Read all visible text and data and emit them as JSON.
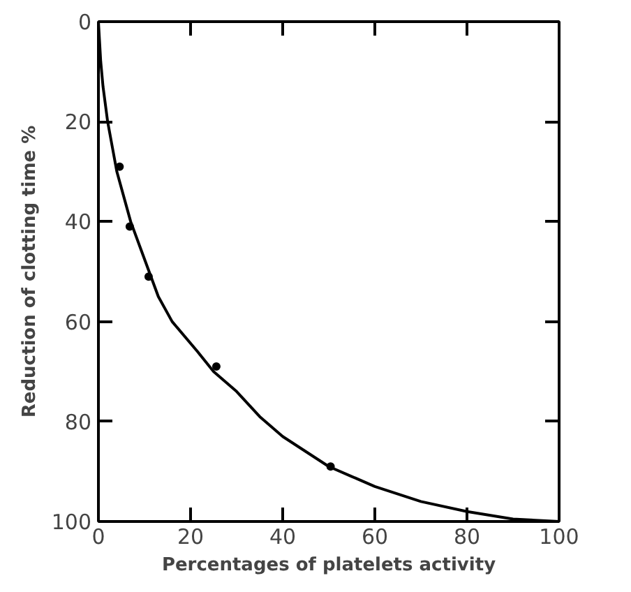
{
  "chart_data": {
    "type": "scatter",
    "xlabel": "Percentages of platelets activity",
    "ylabel": "Reduction of clotting time %",
    "xlim": [
      0,
      100
    ],
    "ylim": [
      100,
      0
    ],
    "xticks": [
      0,
      20,
      40,
      60,
      80,
      100
    ],
    "yticks": [
      0,
      20,
      40,
      60,
      80,
      100
    ],
    "grid": false,
    "series": [
      {
        "color": "#000000",
        "marker": "circle",
        "x": [
          4.6,
          6.8,
          10.9,
          25.6,
          50.4
        ],
        "values": [
          29,
          41,
          51,
          69,
          89
        ]
      },
      {
        "type": "line",
        "color": "#000000",
        "line_style": "solid",
        "x": [
          0,
          0.5,
          1,
          2,
          3,
          4,
          5.5,
          7,
          9,
          11,
          13,
          16,
          21.5,
          25,
          30,
          35,
          40,
          45,
          50,
          55,
          60,
          70,
          80,
          90,
          100
        ],
        "values": [
          0,
          8,
          13,
          20,
          25,
          30,
          35,
          40,
          45,
          50,
          55,
          60,
          66,
          70,
          74,
          79,
          83,
          86,
          89,
          91,
          93,
          96,
          98,
          99.5,
          100
        ]
      }
    ]
  }
}
